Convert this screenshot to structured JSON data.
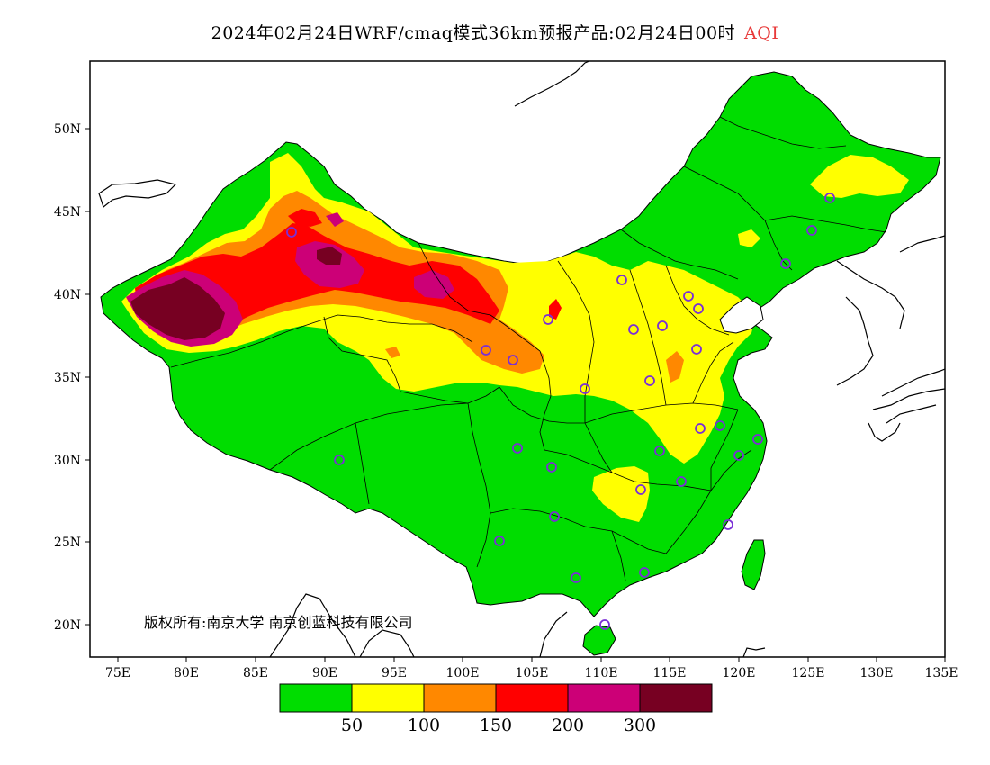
{
  "title": {
    "main": "2024年02月24日WRF/cmaq模式36km预报产品:02月24日00时",
    "variable": "AQI"
  },
  "map": {
    "lon_ticks": [
      "75E",
      "80E",
      "85E",
      "90E",
      "95E",
      "100E",
      "105E",
      "110E",
      "115E",
      "120E",
      "125E",
      "130E",
      "135E"
    ],
    "lat_ticks": [
      "20N",
      "25N",
      "30N",
      "35N",
      "40N",
      "45N",
      "50N"
    ],
    "copyright": "版权所有:南京大学 南京创蓝科技有限公司",
    "colors": {
      "land_base": "#00dd00",
      "background": "#ffffff"
    }
  },
  "legend": {
    "colors": [
      "#00dd00",
      "#ffff00",
      "#ff8800",
      "#ff0000",
      "#cc0077",
      "#770022"
    ],
    "labels": [
      "50",
      "100",
      "150",
      "200",
      "300"
    ]
  }
}
